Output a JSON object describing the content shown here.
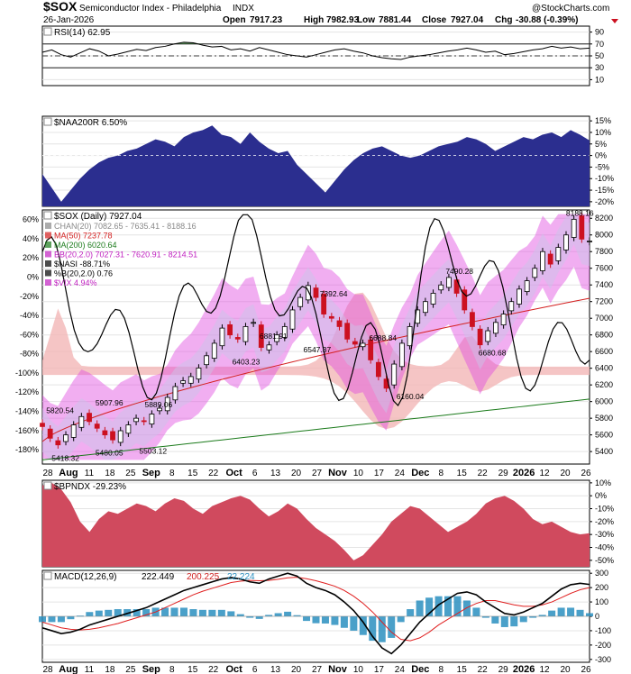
{
  "header": {
    "symbol": "$SOX",
    "name": "Semiconductor Index - Philadelphia",
    "exchange": "INDX",
    "date": "26-Jan-2026",
    "copyright": "@StockCharts.com",
    "ohlc": {
      "open_label": "Open",
      "open": "7917.23",
      "high_label": "High",
      "high": "7982.93",
      "low_label": "Low",
      "low": "7881.44",
      "close_label": "Close",
      "close": "7927.04",
      "chg_label": "Chg",
      "chg": "-30.88 (-0.39%)"
    }
  },
  "colors": {
    "rsi_fill_over": "#3a7d3a",
    "naa_fill": "#2b2e8f",
    "bb_fill": "#e04be0",
    "vix_fill": "#f3b7b7",
    "ma50": "#d42020",
    "ma200": "#1a7a1a",
    "bpndx_fill": "#d04a5e",
    "macd_line": "#000000",
    "signal_line": "#e02020",
    "hist": "#2a8fc0",
    "candle_up": "#000000",
    "candle_down": "#cc1020"
  },
  "x_axis": {
    "labels": [
      "28",
      "Aug",
      "11",
      "18",
      "25",
      "Sep",
      "8",
      "15",
      "22",
      "Oct",
      "6",
      "13",
      "20",
      "27",
      "Nov",
      "10",
      "17",
      "24",
      "Dec",
      "8",
      "15",
      "22",
      "29",
      "2026",
      "12",
      "20",
      "26"
    ],
    "bold": [
      "Aug",
      "Sep",
      "Oct",
      "Nov",
      "Dec",
      "2026"
    ]
  },
  "chart_data": [
    {
      "type": "line",
      "title": "RSI(14) 62.95",
      "y_ticks": [
        "90",
        "70",
        "50",
        "30",
        "10"
      ],
      "ylim": [
        0,
        100
      ],
      "reference_lines": [
        70,
        50,
        30
      ],
      "values": [
        56,
        60,
        52,
        48,
        55,
        62,
        58,
        50,
        53,
        57,
        61,
        59,
        64,
        66,
        70,
        73,
        72,
        68,
        65,
        66,
        60,
        62,
        58,
        64,
        60,
        56,
        52,
        50,
        48,
        52,
        56,
        60,
        62,
        58,
        55,
        50,
        47,
        45,
        44,
        48,
        50,
        52,
        55,
        58,
        60,
        63,
        60,
        56,
        58,
        52,
        54,
        57,
        60,
        62,
        66,
        63,
        65,
        62,
        63
      ]
    },
    {
      "type": "area",
      "title": "$NAA200R 6.50%",
      "y_ticks": [
        "15%",
        "10%",
        "5%",
        "0%",
        "-5%",
        "-10%",
        "-15%",
        "-20%"
      ],
      "ylim": [
        -22,
        17
      ],
      "values": [
        -8,
        -14,
        -20,
        -15,
        -10,
        -6,
        -3,
        -1,
        0,
        2,
        3,
        5,
        7,
        6,
        4,
        8,
        10,
        11,
        13,
        9,
        8,
        5,
        10,
        6,
        3,
        1,
        2,
        -4,
        -8,
        -12,
        -16,
        -11,
        -6,
        -2,
        1,
        3,
        4,
        2,
        0,
        -1,
        0,
        2,
        4,
        5,
        6,
        8,
        7,
        5,
        2,
        4,
        6,
        8,
        7,
        9,
        10,
        8,
        11,
        9,
        6.5
      ]
    },
    {
      "type": "candlestick",
      "title": "$SOX (Daily) 7927.04",
      "legend": [
        {
          "label": "CHAN(20) 7082.65 - 7635.41 - 8188.16",
          "color": "#888888"
        },
        {
          "label": "MA(50) 7237.78",
          "color": "#d42020"
        },
        {
          "label": "MA(200) 6020.64",
          "color": "#1a7a1a"
        },
        {
          "label": "BB(20,2.0) 7027.31 - 7620.91 - 8214.51",
          "color": "#c020c0"
        },
        {
          "label": "$NASI -88.71%",
          "color": "#000000"
        },
        {
          "label": "%B(20,2.0) 0.76",
          "color": "#000000"
        },
        {
          "label": "$VIX 4.94%",
          "color": "#c020c0"
        }
      ],
      "y_ticks_right": [
        "8200",
        "8000",
        "7800",
        "7600",
        "7400",
        "7200",
        "7000",
        "6800",
        "6600",
        "6400",
        "6200",
        "6000",
        "5800",
        "5600",
        "5400"
      ],
      "y_ticks_left": [
        "60%",
        "40%",
        "20%",
        "0%",
        "-20%",
        "-40%",
        "-60%",
        "-80%",
        "-100%",
        "-120%",
        "-140%",
        "-160%",
        "-180%"
      ],
      "ylim": [
        5250,
        8300
      ],
      "close": [
        5700,
        5560,
        5480,
        5600,
        5720,
        5820,
        5760,
        5680,
        5600,
        5540,
        5650,
        5720,
        5800,
        5760,
        5850,
        5920,
        6050,
        6180,
        6250,
        6300,
        6403,
        6550,
        6700,
        6882,
        6800,
        6750,
        6900,
        6950,
        6650,
        6680,
        6800,
        6900,
        7100,
        7250,
        7393,
        7250,
        7050,
        7000,
        6900,
        6750,
        6689,
        6700,
        6500,
        6300,
        6160,
        6450,
        6700,
        6900,
        7100,
        7200,
        7300,
        7400,
        7490,
        7300,
        7100,
        6900,
        6681,
        6850,
        6950,
        7050,
        7200,
        7350,
        7450,
        7600,
        7800,
        7650,
        7850,
        8000,
        8188,
        7950,
        7927
      ],
      "annotations": [
        "5820.54",
        "5418.32",
        "5907.96",
        "5480.05",
        "5889.06",
        "5503.12",
        "6403.23",
        "6881.91",
        "6547.37",
        "7392.64",
        "6688.84",
        "6160.04",
        "7490.28",
        "6680.68",
        "8188.16"
      ]
    },
    {
      "type": "area",
      "title": "$BPNDX -29.23%",
      "y_ticks": [
        "10%",
        "0%",
        "-10%",
        "-20%",
        "-30%",
        "-40%",
        "-50%"
      ],
      "ylim": [
        -55,
        12
      ],
      "values": [
        8,
        10,
        5,
        -5,
        -20,
        -28,
        -18,
        -12,
        -14,
        -10,
        -6,
        -8,
        -12,
        -6,
        -2,
        -4,
        -10,
        -14,
        -8,
        -5,
        -2,
        0,
        -3,
        -10,
        -16,
        -12,
        -6,
        -10,
        -18,
        -25,
        -30,
        -35,
        -42,
        -50,
        -46,
        -38,
        -30,
        -20,
        -14,
        -8,
        -10,
        -16,
        -22,
        -28,
        -24,
        -20,
        -14,
        -6,
        -2,
        0,
        -4,
        -10,
        -18,
        -22,
        -20,
        -24,
        -28,
        -30,
        -29
      ]
    },
    {
      "type": "line",
      "title": "MACD(12,26,9)",
      "values_label": [
        "222.449",
        "200.225",
        "22.224"
      ],
      "y_ticks": [
        "300",
        "200",
        "100",
        "0",
        "-100",
        "-200",
        "-300"
      ],
      "ylim": [
        -320,
        320
      ],
      "macd": [
        -80,
        -100,
        -120,
        -110,
        -90,
        -60,
        -40,
        -20,
        0,
        20,
        40,
        60,
        90,
        120,
        150,
        180,
        200,
        220,
        240,
        260,
        270,
        260,
        240,
        230,
        260,
        280,
        300,
        280,
        230,
        200,
        180,
        150,
        100,
        40,
        -40,
        -140,
        -220,
        -260,
        -200,
        -120,
        -40,
        20,
        80,
        120,
        160,
        170,
        150,
        100,
        60,
        20,
        10,
        30,
        60,
        90,
        140,
        190,
        220,
        230,
        222
      ],
      "signal": [
        -40,
        -60,
        -80,
        -90,
        -95,
        -90,
        -80,
        -65,
        -50,
        -30,
        -10,
        10,
        30,
        60,
        90,
        120,
        150,
        175,
        195,
        215,
        235,
        245,
        250,
        248,
        250,
        258,
        268,
        272,
        262,
        248,
        230,
        210,
        180,
        140,
        90,
        30,
        -40,
        -110,
        -160,
        -170,
        -150,
        -110,
        -60,
        -20,
        20,
        60,
        90,
        110,
        110,
        95,
        80,
        70,
        70,
        80,
        100,
        130,
        160,
        185,
        200
      ]
    }
  ]
}
